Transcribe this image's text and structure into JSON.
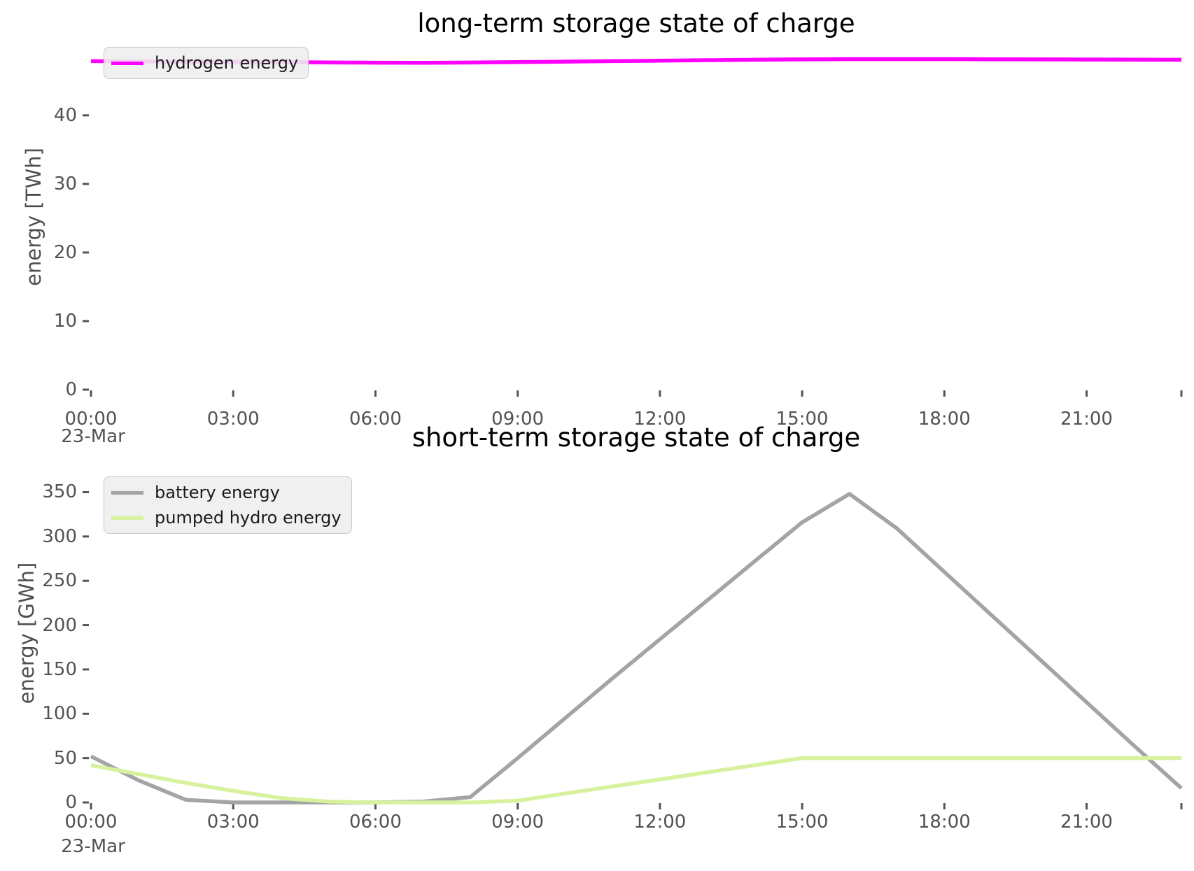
{
  "chart_data": [
    {
      "type": "line",
      "title": "long-term storage state of charge",
      "ylabel": "energy [TWh]",
      "xlabel": "",
      "x_unit": "hour of day",
      "x_date_label": "23-Mar",
      "x_tick_labels": [
        "00:00",
        "03:00",
        "06:00",
        "09:00",
        "12:00",
        "15:00",
        "18:00",
        "21:00"
      ],
      "x_tick_hours": [
        0,
        3,
        6,
        9,
        12,
        15,
        18,
        21
      ],
      "xlim_hours": [
        0,
        23
      ],
      "y_ticks": [
        0,
        10,
        20,
        30,
        40
      ],
      "ylim": [
        0,
        50.9
      ],
      "grid": false,
      "legend_position": "upper left",
      "x_hours": [
        0,
        1,
        2,
        3,
        4,
        5,
        6,
        7,
        8,
        9,
        10,
        11,
        12,
        13,
        14,
        15,
        16,
        17,
        18,
        19,
        20,
        21,
        22,
        23
      ],
      "series": [
        {
          "name": "hydrogen energy",
          "color": "#ff00ff",
          "values": [
            47.9,
            47.87,
            47.84,
            47.8,
            47.76,
            47.72,
            47.68,
            47.66,
            47.7,
            47.76,
            47.83,
            47.9,
            47.97,
            48.04,
            48.1,
            48.16,
            48.2,
            48.2,
            48.2,
            48.18,
            48.16,
            48.14,
            48.12,
            48.1
          ]
        }
      ]
    },
    {
      "type": "line",
      "title": "short-term storage state of charge",
      "ylabel": "energy [GWh]",
      "xlabel": "",
      "x_unit": "hour of day",
      "x_date_label": "23-Mar",
      "x_tick_labels": [
        "00:00",
        "03:00",
        "06:00",
        "09:00",
        "12:00",
        "15:00",
        "18:00",
        "21:00"
      ],
      "x_tick_hours": [
        0,
        3,
        6,
        9,
        12,
        15,
        18,
        21
      ],
      "xlim_hours": [
        0,
        23
      ],
      "y_ticks": [
        0,
        50,
        100,
        150,
        200,
        250,
        300,
        350
      ],
      "ylim": [
        0,
        378
      ],
      "grid": false,
      "legend_position": "upper left",
      "x_hours": [
        0,
        1,
        2,
        3,
        4,
        5,
        6,
        7,
        8,
        9,
        10,
        11,
        12,
        13,
        14,
        15,
        16,
        17,
        18,
        19,
        20,
        21,
        22,
        23
      ],
      "series": [
        {
          "name": "battery energy",
          "color": "#a4a4a4",
          "values": [
            52,
            25,
            3,
            0,
            0,
            0,
            0,
            1,
            6,
            50,
            95,
            140,
            184,
            228,
            272,
            316,
            348,
            309,
            260,
            211,
            162,
            113,
            64,
            16
          ]
        },
        {
          "name": "pumped hydro energy",
          "color": "#d6f29d",
          "values": [
            42,
            32,
            22,
            13,
            5,
            1,
            0,
            0,
            0,
            2,
            10,
            18,
            26,
            34,
            42,
            50,
            50,
            50,
            50,
            50,
            50,
            50,
            50,
            50
          ]
        }
      ]
    }
  ]
}
